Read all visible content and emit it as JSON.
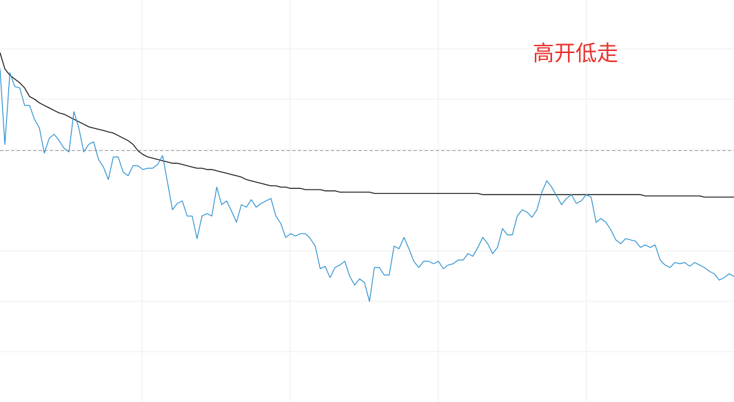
{
  "chart_data": {
    "type": "line",
    "annotation": "高开低走",
    "grid": true,
    "reference_line": {
      "style": "dashed",
      "color": "#9a9a9a"
    },
    "colors": {
      "price": "#2a8fcf",
      "average": "#111111",
      "annotation": "#e8322f",
      "grid": "#ececec"
    },
    "x": [
      0,
      1,
      2,
      3,
      4,
      5,
      6,
      7,
      8,
      9,
      10,
      11,
      12,
      13,
      14,
      15,
      16,
      17,
      18,
      19,
      20,
      21,
      22,
      23,
      24,
      25,
      26,
      27,
      28,
      29,
      30,
      31,
      32,
      33,
      34,
      35,
      36,
      37,
      38,
      39,
      40,
      41,
      42,
      43,
      44,
      45,
      46,
      47,
      48,
      49,
      50,
      51,
      52,
      53,
      54,
      55,
      56,
      57,
      58,
      59,
      60,
      61,
      62,
      63,
      64,
      65,
      66,
      67,
      68,
      69,
      70,
      71,
      72,
      73,
      74,
      75,
      76,
      77,
      78,
      79,
      80,
      81,
      82,
      83,
      84,
      85,
      86,
      87,
      88,
      89,
      90,
      91,
      92,
      93,
      94,
      95,
      96,
      97,
      98,
      99,
      100,
      101,
      102,
      103,
      104,
      105,
      106,
      107,
      108,
      109,
      110,
      111,
      112,
      113,
      114,
      115,
      116,
      117,
      118,
      119,
      120,
      121,
      122,
      123,
      124,
      125,
      126,
      127,
      128,
      129,
      130,
      131,
      132,
      133,
      134,
      135,
      136,
      137,
      138,
      139,
      140,
      141,
      142,
      143,
      144,
      145,
      146,
      147,
      148,
      149
    ],
    "series": [
      {
        "key": "price",
        "values": [
          2.65,
          2.05,
          2.62,
          2.51,
          2.5,
          2.36,
          2.36,
          2.25,
          2.18,
          1.98,
          2.1,
          2.13,
          2.08,
          2.02,
          1.99,
          2.31,
          2.18,
          1.99,
          2.05,
          2.07,
          1.93,
          1.87,
          1.77,
          1.95,
          1.95,
          1.83,
          1.8,
          1.88,
          1.88,
          1.85,
          1.86,
          1.86,
          1.89,
          1.96,
          1.75,
          1.53,
          1.58,
          1.6,
          1.48,
          1.48,
          1.3,
          1.48,
          1.5,
          1.48,
          1.71,
          1.57,
          1.6,
          1.52,
          1.43,
          1.57,
          1.55,
          1.61,
          1.55,
          1.58,
          1.6,
          1.62,
          1.48,
          1.42,
          1.31,
          1.34,
          1.32,
          1.34,
          1.34,
          1.3,
          1.24,
          1.06,
          1.08,
          0.99,
          1.07,
          1.09,
          1.12,
          1.0,
          0.93,
          0.98,
          0.95,
          0.8,
          1.07,
          1.07,
          1.01,
          1.01,
          1.24,
          1.22,
          1.31,
          1.22,
          1.12,
          1.07,
          1.12,
          1.12,
          1.1,
          1.12,
          1.06,
          1.09,
          1.1,
          1.13,
          1.13,
          1.18,
          1.16,
          1.23,
          1.31,
          1.26,
          1.18,
          1.23,
          1.38,
          1.33,
          1.33,
          1.48,
          1.53,
          1.51,
          1.47,
          1.53,
          1.67,
          1.76,
          1.71,
          1.64,
          1.57,
          1.62,
          1.65,
          1.58,
          1.6,
          1.65,
          1.63,
          1.43,
          1.46,
          1.43,
          1.37,
          1.29,
          1.26,
          1.3,
          1.29,
          1.28,
          1.23,
          1.25,
          1.23,
          1.25,
          1.13,
          1.09,
          1.07,
          1.11,
          1.1,
          1.11,
          1.08,
          1.11,
          1.09,
          1.07,
          1.04,
          1.02,
          0.97,
          0.99,
          1.02,
          1.0
        ]
      },
      {
        "key": "average",
        "values": [
          2.78,
          2.65,
          2.6,
          2.57,
          2.54,
          2.5,
          2.43,
          2.41,
          2.38,
          2.36,
          2.34,
          2.32,
          2.3,
          2.29,
          2.27,
          2.25,
          2.23,
          2.21,
          2.19,
          2.18,
          2.17,
          2.16,
          2.15,
          2.14,
          2.12,
          2.1,
          2.08,
          2.05,
          2.0,
          1.97,
          1.95,
          1.94,
          1.93,
          1.92,
          1.91,
          1.9,
          1.9,
          1.89,
          1.88,
          1.87,
          1.86,
          1.86,
          1.85,
          1.85,
          1.84,
          1.83,
          1.82,
          1.81,
          1.8,
          1.79,
          1.77,
          1.76,
          1.75,
          1.74,
          1.73,
          1.72,
          1.72,
          1.71,
          1.71,
          1.7,
          1.7,
          1.7,
          1.69,
          1.69,
          1.69,
          1.69,
          1.68,
          1.68,
          1.68,
          1.67,
          1.67,
          1.67,
          1.67,
          1.67,
          1.67,
          1.67,
          1.66,
          1.66,
          1.66,
          1.66,
          1.66,
          1.66,
          1.66,
          1.66,
          1.66,
          1.66,
          1.66,
          1.66,
          1.66,
          1.66,
          1.66,
          1.66,
          1.66,
          1.66,
          1.66,
          1.66,
          1.66,
          1.66,
          1.65,
          1.65,
          1.65,
          1.65,
          1.65,
          1.65,
          1.65,
          1.65,
          1.65,
          1.65,
          1.65,
          1.65,
          1.65,
          1.65,
          1.65,
          1.65,
          1.65,
          1.65,
          1.65,
          1.65,
          1.65,
          1.65,
          1.65,
          1.65,
          1.65,
          1.65,
          1.65,
          1.65,
          1.65,
          1.65,
          1.65,
          1.65,
          1.65,
          1.64,
          1.64,
          1.64,
          1.64,
          1.64,
          1.64,
          1.64,
          1.64,
          1.64,
          1.64,
          1.64,
          1.64,
          1.63,
          1.63,
          1.63,
          1.63,
          1.63,
          1.63,
          1.63
        ]
      }
    ],
    "xlim": [
      0,
      149
    ],
    "ylim": [
      0,
      4
    ],
    "reference_value": 2.0
  }
}
